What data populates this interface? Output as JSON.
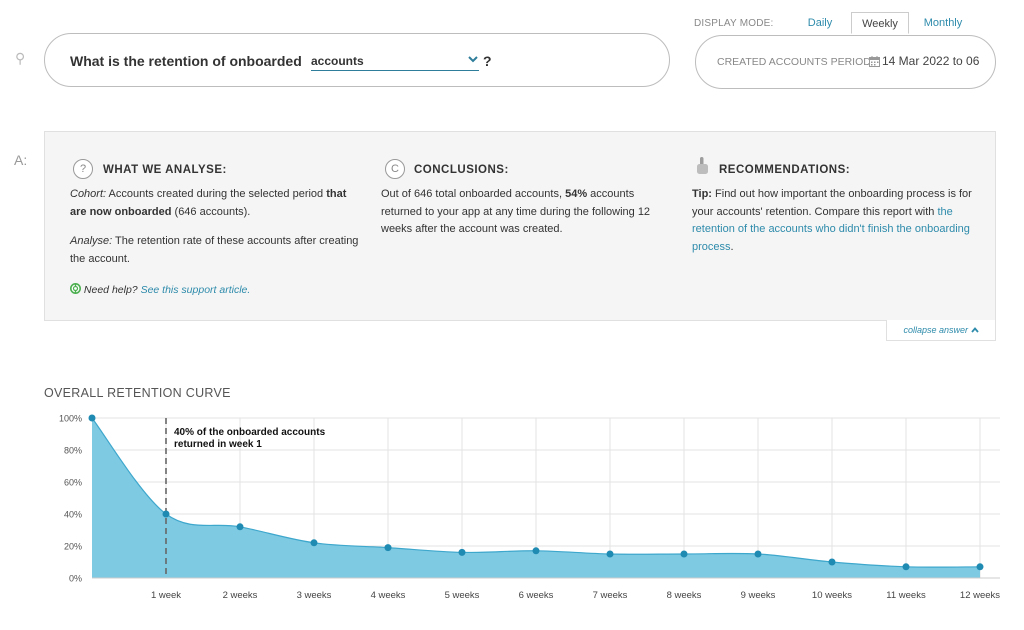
{
  "question": {
    "prefix_label": "Q:",
    "text": "What is the retention of onboarded",
    "selected_entity": "accounts",
    "suffix": "?"
  },
  "display_mode": {
    "label": "DISPLAY MODE:",
    "tabs": [
      "Daily",
      "Weekly",
      "Monthly"
    ],
    "active": "Weekly"
  },
  "period": {
    "label": "CREATED ACCOUNTS PERIOD:",
    "value": "14 Mar 2022 to 06"
  },
  "answer": {
    "prefix_label": "A:",
    "analyse": {
      "icon": "?",
      "title": "WHAT WE ANALYSE:",
      "cohort_label": "Cohort:",
      "cohort_text_1": " Accounts created during the selected period ",
      "cohort_bold": "that are now onboarded",
      "cohort_text_2": " (646 accounts).",
      "analyse_label": "Analyse:",
      "analyse_text": " The retention rate of these accounts after creating the account.",
      "help_label": "Need help?",
      "help_link": "See this support article."
    },
    "conclusions": {
      "icon": "C",
      "title": "CONCLUSIONS:",
      "text_1": "Out of 646 total onboarded accounts, ",
      "bold": "54%",
      "text_2": " accounts returned to your app at any time during the following 12 weeks after the account was created."
    },
    "recommendations": {
      "title": "RECOMMENDATIONS:",
      "tip_label": "Tip:",
      "text": " Find out how important the onboarding process is for your accounts' retention. Compare this report with ",
      "link": "the retention of the accounts who didn't finish the onboarding process",
      "end": "."
    },
    "collapse_label": "collapse answer"
  },
  "chart_title": "OVERALL RETENTION CURVE",
  "chart_data": {
    "type": "area",
    "title": "OVERALL RETENTION CURVE",
    "x": [
      "0",
      "1 week",
      "2 weeks",
      "3 weeks",
      "4 weeks",
      "5 weeks",
      "6 weeks",
      "7 weeks",
      "8 weeks",
      "9 weeks",
      "10 weeks",
      "11 weeks",
      "12 weeks"
    ],
    "x_tick_labels": [
      "1 week",
      "2 weeks",
      "3 weeks",
      "4 weeks",
      "5 weeks",
      "6 weeks",
      "7 weeks",
      "8 weeks",
      "9 weeks",
      "10 weeks",
      "11 weeks",
      "12 weeks"
    ],
    "values": [
      100,
      40,
      32,
      22,
      19,
      16,
      17,
      15,
      15,
      15,
      10,
      7,
      7
    ],
    "y_ticks": [
      "0%",
      "20%",
      "40%",
      "60%",
      "80%",
      "100%"
    ],
    "ylim": [
      0,
      100
    ],
    "grid": true,
    "annotation": {
      "at": "1 week",
      "lines": [
        "40% of the onboarded accounts",
        "returned in week 1"
      ]
    },
    "colors": {
      "fill": "#7ecae3",
      "line": "#3ea7cc",
      "point": "#1f8ab2"
    }
  }
}
